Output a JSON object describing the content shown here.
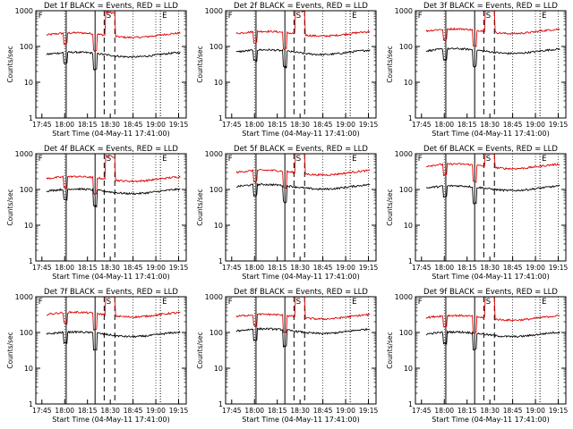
{
  "chart_data": [
    {
      "type": "line",
      "title": "Det 1f BLACK = Events, RED = LLD",
      "xlabel": "Start Time (04-May-11 17:41:00)",
      "ylabel": "Counts/sec",
      "x_ticks": [
        "17:45",
        "18:00",
        "18:15",
        "18:30",
        "18:45",
        "19:00",
        "19:15"
      ],
      "y_ticks": [
        "1",
        "10",
        "100",
        "1000"
      ],
      "ylim": [
        1,
        1000
      ],
      "xlim": [
        "17:41",
        "19:20"
      ],
      "scale": "log",
      "grid": "dotted vertical",
      "markers": [
        "F",
        "S",
        "E"
      ],
      "red_level": 210,
      "black_level": 60
    },
    {
      "type": "line",
      "title": "Det 2f BLACK = Events, RED = LLD",
      "xlabel": "Start Time (04-May-11 17:41:00)",
      "ylabel": "Counts/sec",
      "x_ticks": [
        "17:45",
        "18:00",
        "18:15",
        "18:30",
        "18:45",
        "19:00",
        "19:15"
      ],
      "y_ticks": [
        "1",
        "10",
        "100",
        "1000"
      ],
      "ylim": [
        1,
        1000
      ],
      "xlim": [
        "17:41",
        "19:20"
      ],
      "scale": "log",
      "grid": "dotted vertical",
      "markers": [
        "F",
        "S",
        "E"
      ],
      "red_level": 230,
      "black_level": 70
    },
    {
      "type": "line",
      "title": "Det 3f BLACK = Events, RED = LLD",
      "xlabel": "Start Time (04-May-11 17:41:00)",
      "ylabel": "Counts/sec",
      "x_ticks": [
        "17:45",
        "18:00",
        "18:15",
        "18:30",
        "18:45",
        "19:00",
        "19:15"
      ],
      "y_ticks": [
        "1",
        "10",
        "100",
        "1000"
      ],
      "ylim": [
        1,
        1000
      ],
      "xlim": [
        "17:41",
        "19:20"
      ],
      "scale": "log",
      "grid": "dotted vertical",
      "markers": [
        "F",
        "S",
        "E"
      ],
      "red_level": 270,
      "black_level": 75
    },
    {
      "type": "line",
      "title": "Det 4f BLACK = Events, RED = LLD",
      "xlabel": "Start Time (04-May-11 17:41:00)",
      "ylabel": "Counts/sec",
      "x_ticks": [
        "17:45",
        "18:00",
        "18:15",
        "18:30",
        "18:45",
        "19:00",
        "19:15"
      ],
      "y_ticks": [
        "1",
        "10",
        "100",
        "1000"
      ],
      "ylim": [
        1,
        1000
      ],
      "xlim": [
        "17:41",
        "19:20"
      ],
      "scale": "log",
      "grid": "dotted vertical",
      "markers": [
        "F",
        "S",
        "E"
      ],
      "red_level": 200,
      "black_level": 90
    },
    {
      "type": "line",
      "title": "Det 5f BLACK = Events, RED = LLD",
      "xlabel": "Start Time (04-May-11 17:41:00)",
      "ylabel": "Counts/sec",
      "x_ticks": [
        "17:45",
        "18:00",
        "18:15",
        "18:30",
        "18:45",
        "19:00",
        "19:15"
      ],
      "y_ticks": [
        "1",
        "10",
        "100",
        "1000"
      ],
      "ylim": [
        1,
        1000
      ],
      "xlim": [
        "17:41",
        "19:20"
      ],
      "scale": "log",
      "grid": "dotted vertical",
      "markers": [
        "F",
        "S",
        "E"
      ],
      "red_level": 300,
      "black_level": 120
    },
    {
      "type": "line",
      "title": "Det 6f BLACK = Events, RED = LLD",
      "xlabel": "Start Time (04-May-11 17:41:00)",
      "ylabel": "Counts/sec",
      "x_ticks": [
        "17:45",
        "18:00",
        "18:15",
        "18:30",
        "18:45",
        "19:00",
        "19:15"
      ],
      "y_ticks": [
        "1",
        "10",
        "100",
        "1000"
      ],
      "ylim": [
        1,
        1000
      ],
      "xlim": [
        "17:41",
        "19:20"
      ],
      "scale": "log",
      "grid": "dotted vertical",
      "markers": [
        "F",
        "S",
        "E"
      ],
      "red_level": 450,
      "black_level": 110
    },
    {
      "type": "line",
      "title": "Det 7f BLACK = Events, RED = LLD",
      "xlabel": "Start Time (04-May-11 17:41:00)",
      "ylabel": "Counts/sec",
      "x_ticks": [
        "17:45",
        "18:00",
        "18:15",
        "18:30",
        "18:45",
        "19:00",
        "19:15"
      ],
      "y_ticks": [
        "1",
        "10",
        "100",
        "1000"
      ],
      "ylim": [
        1,
        1000
      ],
      "xlim": [
        "17:41",
        "19:20"
      ],
      "scale": "log",
      "grid": "dotted vertical",
      "markers": [
        "F",
        "S",
        "E"
      ],
      "red_level": 320,
      "black_level": 90
    },
    {
      "type": "line",
      "title": "Det 8f BLACK = Events, RED = LLD",
      "xlabel": "Start Time (04-May-11 17:41:00)",
      "ylabel": "Counts/sec",
      "x_ticks": [
        "17:45",
        "18:00",
        "18:15",
        "18:30",
        "18:45",
        "19:00",
        "19:15"
      ],
      "y_ticks": [
        "1",
        "10",
        "100",
        "1000"
      ],
      "ylim": [
        1,
        1000
      ],
      "xlim": [
        "17:41",
        "19:20"
      ],
      "scale": "log",
      "grid": "dotted vertical",
      "markers": [
        "F",
        "S",
        "E"
      ],
      "red_level": 280,
      "black_level": 110
    },
    {
      "type": "line",
      "title": "Det 9f BLACK = Events, RED = LLD",
      "xlabel": "Start Time (04-May-11 17:41:00)",
      "ylabel": "Counts/sec",
      "x_ticks": [
        "17:45",
        "18:00",
        "18:15",
        "18:30",
        "18:45",
        "19:00",
        "19:15"
      ],
      "y_ticks": [
        "1",
        "10",
        "100",
        "1000"
      ],
      "ylim": [
        1,
        1000
      ],
      "xlim": [
        "17:41",
        "19:20"
      ],
      "scale": "log",
      "grid": "dotted vertical",
      "markers": [
        "F",
        "S",
        "E"
      ],
      "red_level": 260,
      "black_level": 90
    }
  ],
  "colors": {
    "events": "#000000",
    "lld": "#dd0000",
    "axes": "#000000",
    "background": "#ffffff"
  }
}
